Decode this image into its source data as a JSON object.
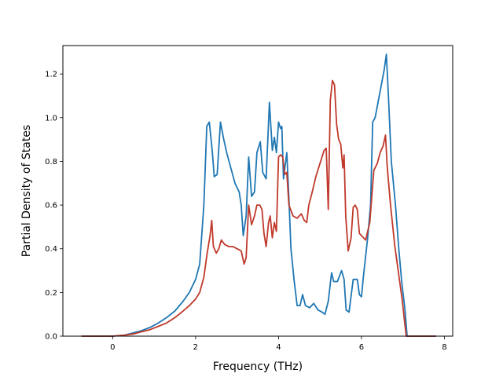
{
  "chart_data": {
    "type": "line",
    "title": "",
    "xlabel": "Frequency (THz)",
    "ylabel": "Partial Density of States",
    "xlim": [
      -1.2,
      8.2
    ],
    "ylim": [
      0.0,
      1.33
    ],
    "grid": false,
    "legend": "none",
    "x_ticks": [
      0,
      2,
      4,
      6,
      8
    ],
    "x_tick_labels": [
      "0",
      "2",
      "4",
      "6",
      "8"
    ],
    "y_ticks": [
      0.0,
      0.2,
      0.4,
      0.6,
      0.8,
      1.0,
      1.2
    ],
    "y_tick_labels": [
      "0.0",
      "0.2",
      "0.4",
      "0.6",
      "0.8",
      "1.0",
      "1.2"
    ],
    "series": [
      {
        "color": "#1f77b4",
        "points": [
          [
            -0.75,
            0.0
          ],
          [
            0.0,
            0.0
          ],
          [
            0.3,
            0.005
          ],
          [
            0.5,
            0.015
          ],
          [
            0.7,
            0.025
          ],
          [
            0.9,
            0.04
          ],
          [
            1.1,
            0.06
          ],
          [
            1.3,
            0.085
          ],
          [
            1.5,
            0.115
          ],
          [
            1.7,
            0.16
          ],
          [
            1.85,
            0.2
          ],
          [
            2.0,
            0.26
          ],
          [
            2.1,
            0.33
          ],
          [
            2.2,
            0.6
          ],
          [
            2.27,
            0.96
          ],
          [
            2.33,
            0.98
          ],
          [
            2.4,
            0.85
          ],
          [
            2.45,
            0.73
          ],
          [
            2.52,
            0.74
          ],
          [
            2.6,
            0.98
          ],
          [
            2.68,
            0.9
          ],
          [
            2.75,
            0.84
          ],
          [
            2.85,
            0.77
          ],
          [
            2.95,
            0.7
          ],
          [
            3.05,
            0.66
          ],
          [
            3.1,
            0.6
          ],
          [
            3.15,
            0.46
          ],
          [
            3.22,
            0.55
          ],
          [
            3.28,
            0.82
          ],
          [
            3.35,
            0.64
          ],
          [
            3.42,
            0.66
          ],
          [
            3.48,
            0.84
          ],
          [
            3.56,
            0.89
          ],
          [
            3.62,
            0.75
          ],
          [
            3.7,
            0.72
          ],
          [
            3.78,
            1.07
          ],
          [
            3.85,
            0.85
          ],
          [
            3.9,
            0.91
          ],
          [
            3.95,
            0.84
          ],
          [
            4.0,
            0.98
          ],
          [
            4.05,
            0.95
          ],
          [
            4.08,
            0.96
          ],
          [
            4.12,
            0.72
          ],
          [
            4.2,
            0.84
          ],
          [
            4.25,
            0.63
          ],
          [
            4.3,
            0.4
          ],
          [
            4.38,
            0.25
          ],
          [
            4.45,
            0.14
          ],
          [
            4.52,
            0.14
          ],
          [
            4.58,
            0.19
          ],
          [
            4.65,
            0.14
          ],
          [
            4.75,
            0.13
          ],
          [
            4.85,
            0.15
          ],
          [
            4.95,
            0.12
          ],
          [
            5.05,
            0.11
          ],
          [
            5.12,
            0.1
          ],
          [
            5.2,
            0.16
          ],
          [
            5.28,
            0.29
          ],
          [
            5.33,
            0.25
          ],
          [
            5.42,
            0.25
          ],
          [
            5.52,
            0.3
          ],
          [
            5.58,
            0.26
          ],
          [
            5.63,
            0.12
          ],
          [
            5.7,
            0.11
          ],
          [
            5.8,
            0.26
          ],
          [
            5.9,
            0.26
          ],
          [
            5.95,
            0.19
          ],
          [
            6.0,
            0.18
          ],
          [
            6.05,
            0.28
          ],
          [
            6.15,
            0.45
          ],
          [
            6.22,
            0.6
          ],
          [
            6.27,
            0.98
          ],
          [
            6.33,
            1.0
          ],
          [
            6.4,
            1.07
          ],
          [
            6.48,
            1.15
          ],
          [
            6.55,
            1.22
          ],
          [
            6.6,
            1.29
          ],
          [
            6.65,
            1.1
          ],
          [
            6.72,
            0.8
          ],
          [
            6.82,
            0.6
          ],
          [
            6.9,
            0.4
          ],
          [
            6.97,
            0.25
          ],
          [
            7.05,
            0.12
          ],
          [
            7.1,
            0.0
          ],
          [
            7.8,
            0.0
          ]
        ]
      },
      {
        "color": "#c0392b",
        "points": [
          [
            -0.75,
            0.0
          ],
          [
            0.0,
            0.0
          ],
          [
            0.3,
            0.005
          ],
          [
            0.5,
            0.01
          ],
          [
            0.7,
            0.02
          ],
          [
            0.9,
            0.03
          ],
          [
            1.1,
            0.045
          ],
          [
            1.3,
            0.06
          ],
          [
            1.5,
            0.085
          ],
          [
            1.7,
            0.115
          ],
          [
            1.85,
            0.14
          ],
          [
            2.0,
            0.17
          ],
          [
            2.1,
            0.2
          ],
          [
            2.2,
            0.27
          ],
          [
            2.28,
            0.38
          ],
          [
            2.35,
            0.46
          ],
          [
            2.39,
            0.53
          ],
          [
            2.43,
            0.41
          ],
          [
            2.5,
            0.38
          ],
          [
            2.56,
            0.4
          ],
          [
            2.62,
            0.44
          ],
          [
            2.7,
            0.42
          ],
          [
            2.8,
            0.41
          ],
          [
            2.9,
            0.41
          ],
          [
            3.0,
            0.4
          ],
          [
            3.1,
            0.39
          ],
          [
            3.17,
            0.33
          ],
          [
            3.22,
            0.36
          ],
          [
            3.28,
            0.6
          ],
          [
            3.35,
            0.51
          ],
          [
            3.42,
            0.55
          ],
          [
            3.48,
            0.6
          ],
          [
            3.55,
            0.6
          ],
          [
            3.6,
            0.58
          ],
          [
            3.65,
            0.47
          ],
          [
            3.7,
            0.41
          ],
          [
            3.76,
            0.52
          ],
          [
            3.8,
            0.55
          ],
          [
            3.85,
            0.45
          ],
          [
            3.9,
            0.52
          ],
          [
            3.95,
            0.48
          ],
          [
            4.0,
            0.82
          ],
          [
            4.05,
            0.83
          ],
          [
            4.1,
            0.82
          ],
          [
            4.15,
            0.74
          ],
          [
            4.2,
            0.75
          ],
          [
            4.25,
            0.6
          ],
          [
            4.35,
            0.55
          ],
          [
            4.45,
            0.54
          ],
          [
            4.55,
            0.56
          ],
          [
            4.62,
            0.53
          ],
          [
            4.68,
            0.52
          ],
          [
            4.73,
            0.6
          ],
          [
            4.8,
            0.65
          ],
          [
            4.9,
            0.73
          ],
          [
            5.0,
            0.79
          ],
          [
            5.1,
            0.85
          ],
          [
            5.15,
            0.86
          ],
          [
            5.2,
            0.58
          ],
          [
            5.25,
            1.08
          ],
          [
            5.3,
            1.17
          ],
          [
            5.35,
            1.15
          ],
          [
            5.4,
            0.97
          ],
          [
            5.45,
            0.9
          ],
          [
            5.5,
            0.88
          ],
          [
            5.55,
            0.77
          ],
          [
            5.58,
            0.83
          ],
          [
            5.62,
            0.55
          ],
          [
            5.68,
            0.39
          ],
          [
            5.75,
            0.45
          ],
          [
            5.8,
            0.59
          ],
          [
            5.85,
            0.6
          ],
          [
            5.9,
            0.58
          ],
          [
            5.95,
            0.47
          ],
          [
            6.0,
            0.46
          ],
          [
            6.1,
            0.44
          ],
          [
            6.2,
            0.52
          ],
          [
            6.3,
            0.76
          ],
          [
            6.38,
            0.79
          ],
          [
            6.45,
            0.84
          ],
          [
            6.52,
            0.87
          ],
          [
            6.58,
            0.92
          ],
          [
            6.62,
            0.78
          ],
          [
            6.7,
            0.6
          ],
          [
            6.8,
            0.42
          ],
          [
            6.9,
            0.28
          ],
          [
            6.98,
            0.17
          ],
          [
            7.05,
            0.05
          ],
          [
            7.08,
            0.0
          ],
          [
            7.8,
            0.0
          ]
        ]
      }
    ]
  }
}
